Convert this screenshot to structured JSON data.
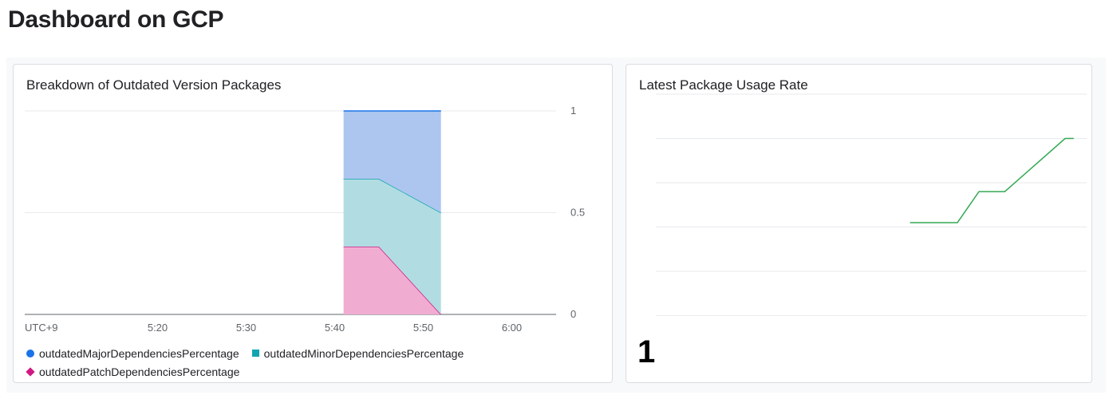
{
  "page": {
    "title": "Dashboard on GCP"
  },
  "left_card": {
    "title": "Breakdown of Outdated Version Packages",
    "timezone_label": "UTC+9",
    "legend": [
      {
        "label": "outdatedMajorDependenciesPercentage",
        "color": "#1a73e8",
        "shape": "circle"
      },
      {
        "label": "outdatedMinorDependenciesPercentage",
        "color": "#12a4af",
        "shape": "square"
      },
      {
        "label": "outdatedPatchDependenciesPercentage",
        "color": "#d01884",
        "shape": "diamond"
      }
    ]
  },
  "right_card": {
    "title": "Latest Package Usage Rate",
    "value": "1"
  },
  "chart_data": [
    {
      "type": "area",
      "title": "Breakdown of Outdated Version Packages",
      "x_label": "",
      "y_label": "",
      "x_ticks": [
        "5:20",
        "5:30",
        "5:40",
        "5:50",
        "6:00"
      ],
      "y_ticks": [
        "0",
        "0.5",
        "1"
      ],
      "ylim": [
        0,
        1
      ],
      "xlim": [
        "5:05",
        "6:05"
      ],
      "stacked": true,
      "grid": true,
      "legend_position": "bottom",
      "x": [
        "5:41",
        "5:45",
        "5:52"
      ],
      "series": [
        {
          "name": "outdatedPatchDependenciesPercentage",
          "values": [
            0.333,
            0.333,
            0.0
          ],
          "line_color": "#d01884",
          "fill_color": "#f1acd1"
        },
        {
          "name": "outdatedMinorDependenciesPercentage",
          "values": [
            0.333,
            0.333,
            0.5
          ],
          "line_color": "#12a4af",
          "fill_color": "#b1dde2"
        },
        {
          "name": "outdatedMajorDependenciesPercentage",
          "values": [
            0.334,
            0.334,
            0.5
          ],
          "line_color": "#1a73e8",
          "fill_color": "#adc6ef"
        }
      ]
    },
    {
      "type": "line",
      "title": "Latest Package Usage Rate",
      "x_label": "",
      "y_label": "",
      "grid": true,
      "axes_visible": false,
      "ylim": [
        0,
        6
      ],
      "xlim": [
        0,
        10
      ],
      "x": [
        5.9,
        7.0,
        7.5,
        8.1,
        9.5,
        9.7
      ],
      "series": [
        {
          "name": "",
          "values": [
            3.1,
            3.1,
            3.8,
            3.8,
            5.0,
            5.0
          ],
          "line_color": "#34a853"
        }
      ]
    }
  ]
}
